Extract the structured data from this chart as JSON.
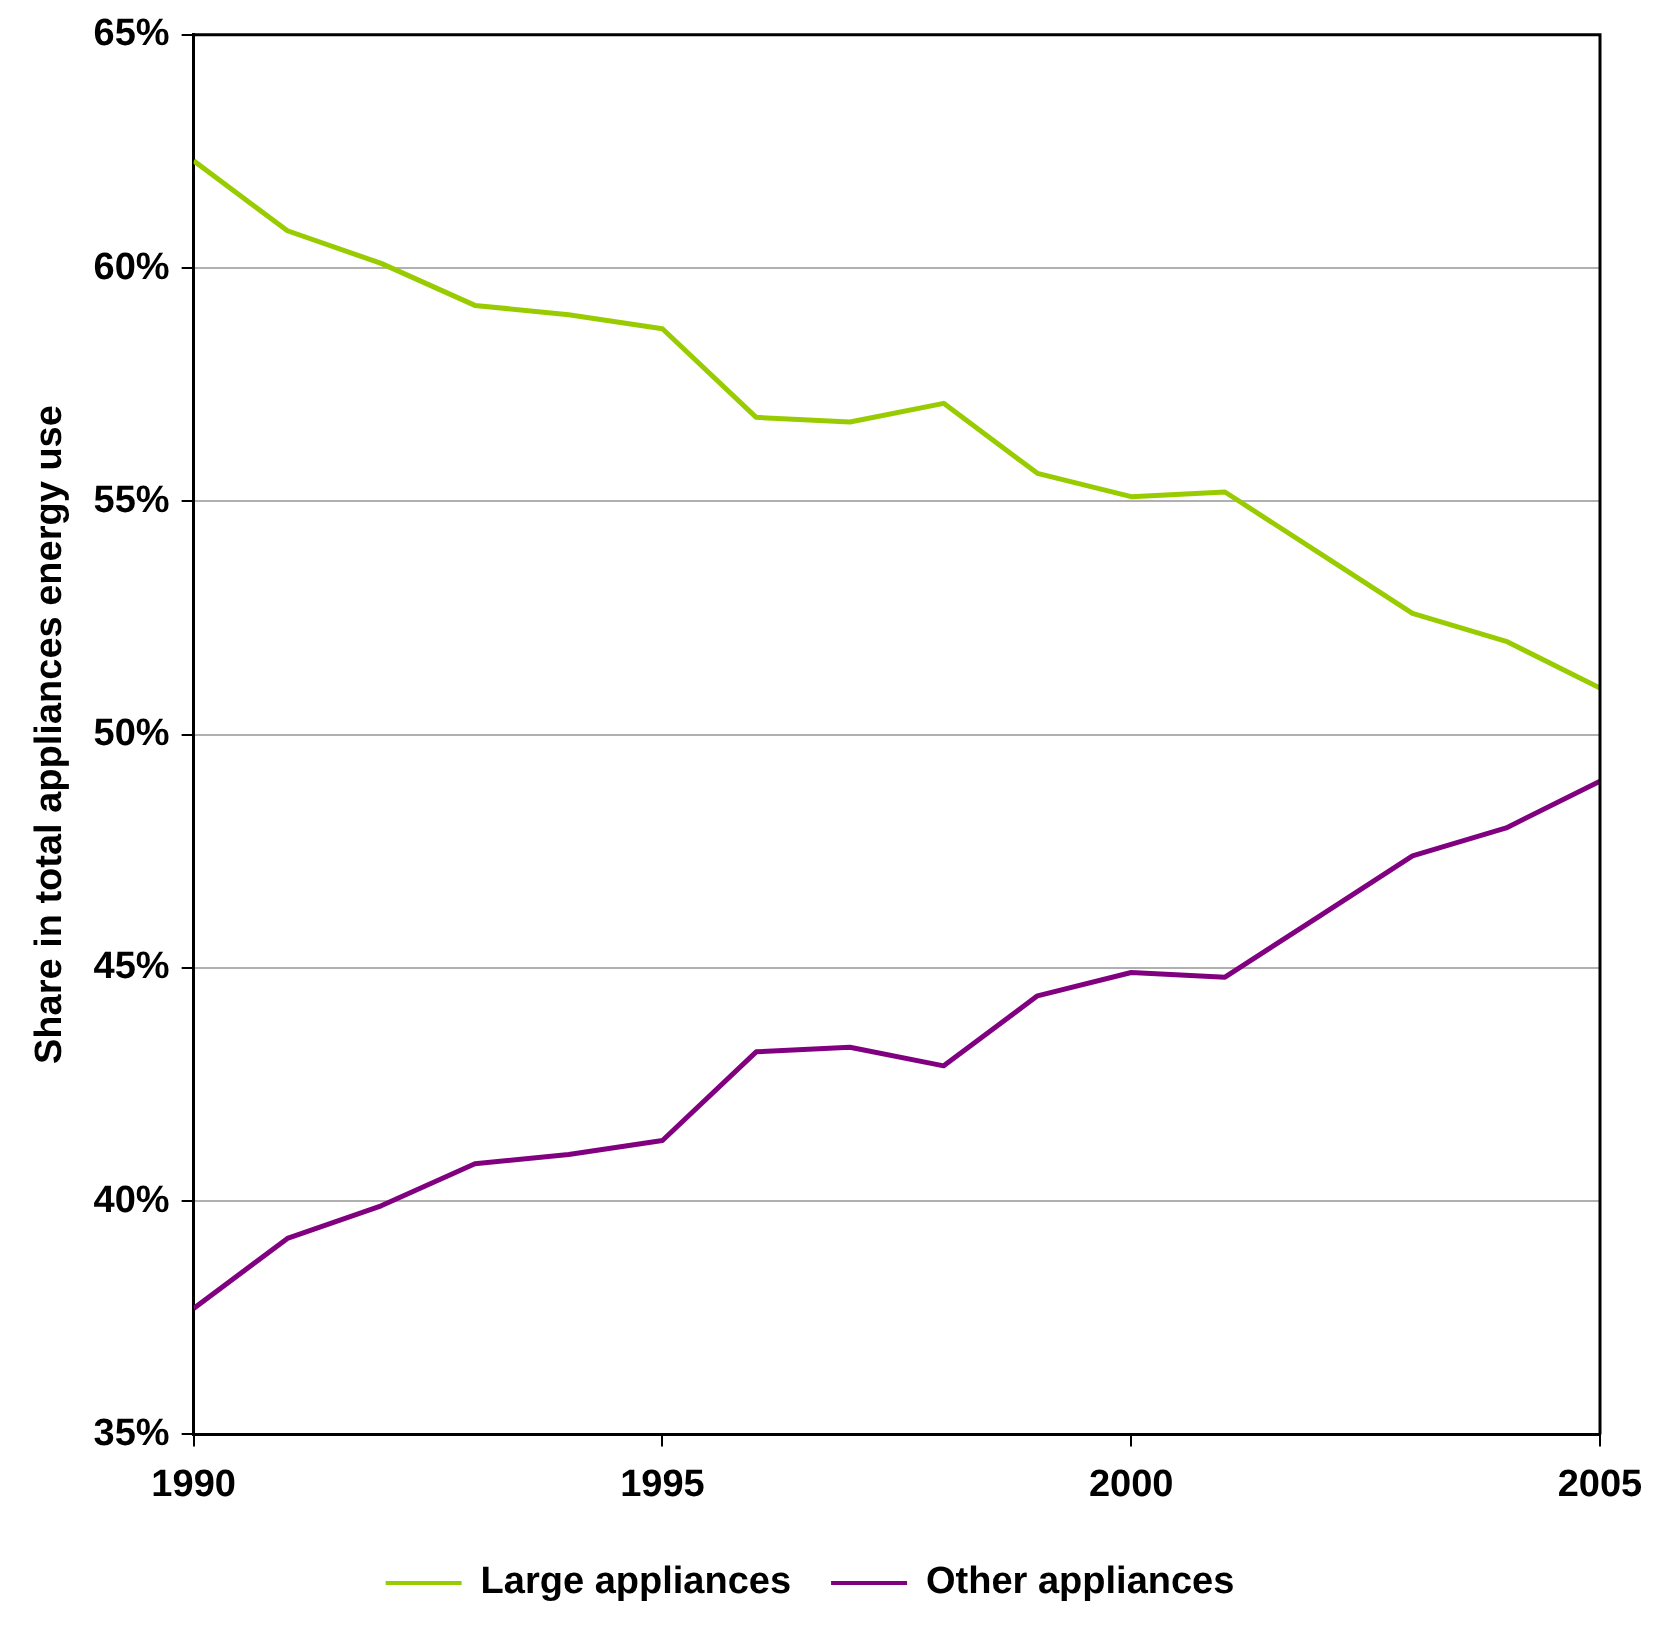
{
  "chart_data": {
    "type": "line",
    "ylabel": "Share in total appliances energy use",
    "x": [
      1990,
      1991,
      1992,
      1993,
      1994,
      1995,
      1996,
      1997,
      1998,
      1999,
      2000,
      2001,
      2002,
      2003,
      2004,
      2005
    ],
    "series": [
      {
        "name": "Large appliances",
        "color": "#99cc00",
        "values": [
          62.3,
          60.8,
          60.1,
          59.2,
          59.0,
          58.7,
          56.8,
          56.7,
          57.1,
          55.6,
          55.1,
          55.2,
          53.9,
          52.6,
          52.0,
          51.0
        ]
      },
      {
        "name": "Other appliances",
        "color": "#800080",
        "values": [
          37.7,
          39.2,
          39.9,
          40.8,
          41.0,
          41.3,
          43.2,
          43.3,
          42.9,
          44.4,
          44.9,
          44.8,
          46.1,
          47.4,
          48.0,
          49.0
        ]
      }
    ],
    "xlim": [
      1990,
      2005
    ],
    "xticks": [
      1990,
      1995,
      2000,
      2005
    ],
    "ylim": [
      35,
      65
    ],
    "yticks": [
      {
        "value": 35,
        "label": "35%"
      },
      {
        "value": 40,
        "label": "40%"
      },
      {
        "value": 45,
        "label": "45%"
      },
      {
        "value": 50,
        "label": "50%"
      },
      {
        "value": 55,
        "label": "55%"
      },
      {
        "value": 60,
        "label": "60%"
      },
      {
        "value": 65,
        "label": "65%"
      }
    ],
    "grid": "y",
    "legend": "bottom",
    "marker": "none",
    "line_style": "solid"
  }
}
